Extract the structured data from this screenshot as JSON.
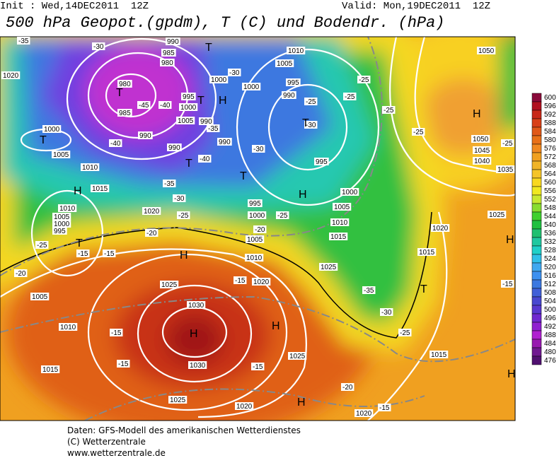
{
  "header": {
    "init": "Init : Wed,14DEC2011  12Z",
    "valid": "Valid: Mon,19DEC2011  12Z",
    "title": "500 hPa Geopot.(gpdm), T (C) und Bodendr. (hPa)"
  },
  "isobar_labels": [
    980,
    985,
    985,
    990,
    980,
    990,
    995,
    1000,
    1005,
    990,
    990,
    990,
    1000,
    1000,
    1005,
    1010,
    995,
    990,
    995,
    1000,
    1005,
    1010,
    1015,
    1020,
    1025,
    1015,
    1015,
    1025,
    1035,
    1040,
    1045,
    1050,
    1050,
    1000,
    1005,
    1010,
    1015,
    1020,
    1010,
    1005,
    1000,
    995,
    1005,
    1010,
    1015,
    1025,
    1030,
    1030,
    1025,
    1020,
    1025,
    1020,
    1020,
    1010,
    1005,
    1000,
    995,
    1020
  ],
  "temperature_labels": [
    -35,
    -30,
    -45,
    -40,
    -40,
    -40,
    -35,
    -35,
    -30,
    -25,
    -20,
    -15,
    -15,
    -25,
    -20,
    -30,
    -30,
    -25,
    -20,
    -15,
    -30,
    -25,
    -25,
    -25,
    -25,
    -25,
    -35,
    -30,
    -25,
    -15,
    -15,
    -15,
    -20,
    -15,
    -15,
    -25
  ],
  "pressure_centers": [
    "T",
    "T",
    "H",
    "T",
    "T",
    "T",
    "H",
    "T",
    "T",
    "T",
    "H",
    "H",
    "H",
    "H",
    "H",
    "H",
    "H",
    "H",
    "T"
  ],
  "colorbar": {
    "levels": [
      600,
      596,
      592,
      588,
      584,
      580,
      576,
      572,
      568,
      564,
      560,
      556,
      552,
      548,
      544,
      540,
      536,
      532,
      528,
      524,
      520,
      516,
      512,
      508,
      504,
      500,
      496,
      492,
      488,
      484,
      480,
      476
    ],
    "colors": [
      "#8a0a3a",
      "#b01020",
      "#c82818",
      "#d84018",
      "#e05818",
      "#e87018",
      "#f08820",
      "#f0a020",
      "#f0b428",
      "#f4c428",
      "#f8d820",
      "#f0e820",
      "#c8e830",
      "#88dc30",
      "#40d030",
      "#20c040",
      "#20c070",
      "#20c8a0",
      "#20d0c8",
      "#30c0e8",
      "#40a8f0",
      "#3c90f0",
      "#3c78e0",
      "#4060d8",
      "#4848d0",
      "#5838d0",
      "#7028d0",
      "#9020d0",
      "#b020d0",
      "#9818b0",
      "#701890",
      "#501070"
    ]
  },
  "footer": [
    "Daten: GFS-Modell des amerikanischen Wetterdienstes",
    "(C) Wetterzentrale",
    "www.wetterzentrale.de"
  ]
}
